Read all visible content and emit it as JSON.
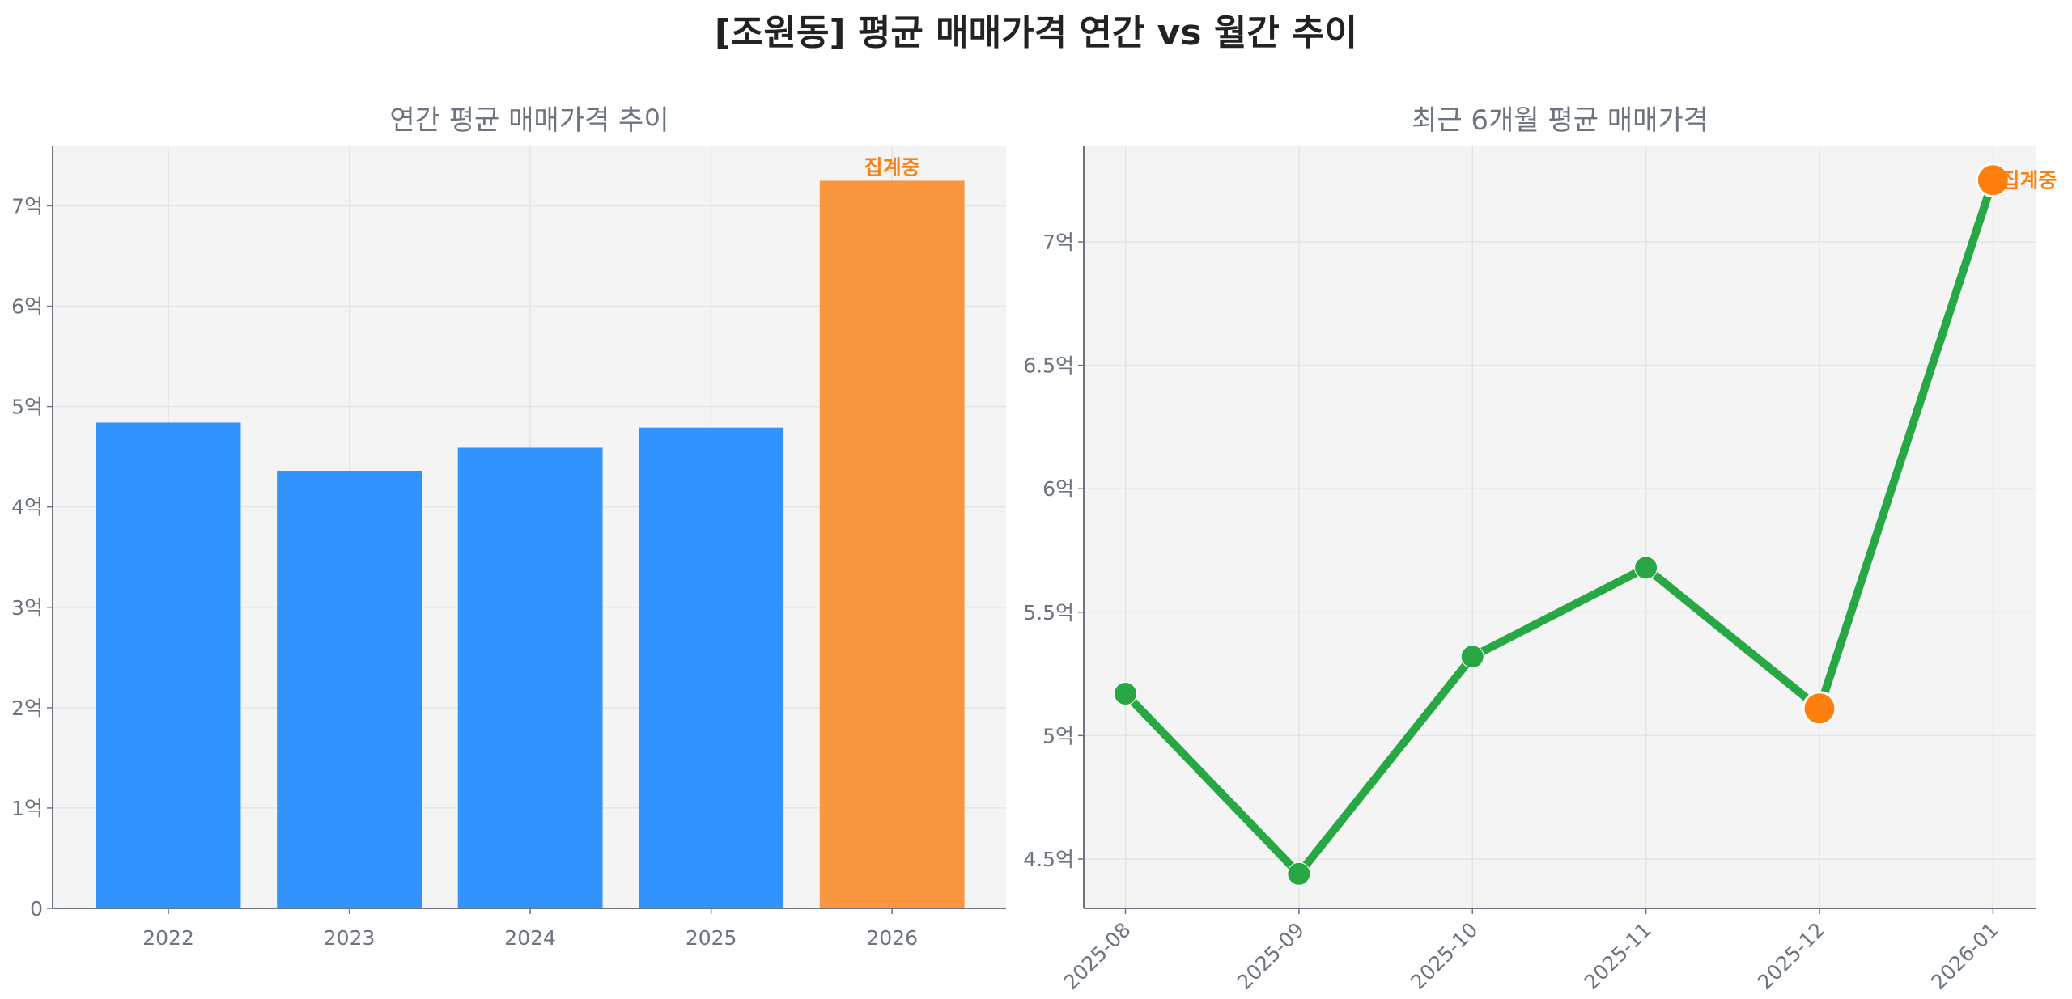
{
  "title": "[조원동] 평균 매매가격 연간 vs 월간 추이",
  "chart_data": [
    {
      "type": "bar",
      "title": "연간 평균 매매가격 추이",
      "categories": [
        "2022",
        "2023",
        "2024",
        "2025",
        "2026"
      ],
      "values": [
        4.84,
        4.36,
        4.59,
        4.79,
        7.25
      ],
      "unit": "억",
      "ylim": [
        0,
        7.6
      ],
      "yticks": [
        0,
        1,
        2,
        3,
        4,
        5,
        6,
        7
      ],
      "ytick_labels": [
        "0",
        "1억",
        "2억",
        "3억",
        "4억",
        "5억",
        "6억",
        "7억"
      ],
      "bar_colors": [
        "#3193fb",
        "#3193fb",
        "#3193fb",
        "#3193fb",
        "#f99640"
      ],
      "annotation": {
        "category": "2026",
        "text": "집계중",
        "color": "#ff7f0e"
      },
      "grid": true
    },
    {
      "type": "line",
      "title": "최근 6개월 평균 매매가격",
      "x": [
        "2025-08",
        "2025-09",
        "2025-10",
        "2025-11",
        "2025-12",
        "2026-01"
      ],
      "values": [
        5.17,
        4.44,
        5.32,
        5.68,
        5.11,
        7.25
      ],
      "unit": "억",
      "ylim": [
        4.3,
        7.39
      ],
      "yticks": [
        4.5,
        5,
        5.5,
        6,
        6.5,
        7
      ],
      "ytick_labels": [
        "4.5억",
        "5억",
        "5.5억",
        "6억",
        "6.5억",
        "7억"
      ],
      "line_color": "#28a745",
      "highlight_points": [
        "2025-12",
        "2026-01"
      ],
      "highlight_color": "#ff7f0e",
      "annotation": {
        "x": "2026-01",
        "text": "집계중",
        "color": "#ff7f0e"
      },
      "grid": true
    }
  ]
}
